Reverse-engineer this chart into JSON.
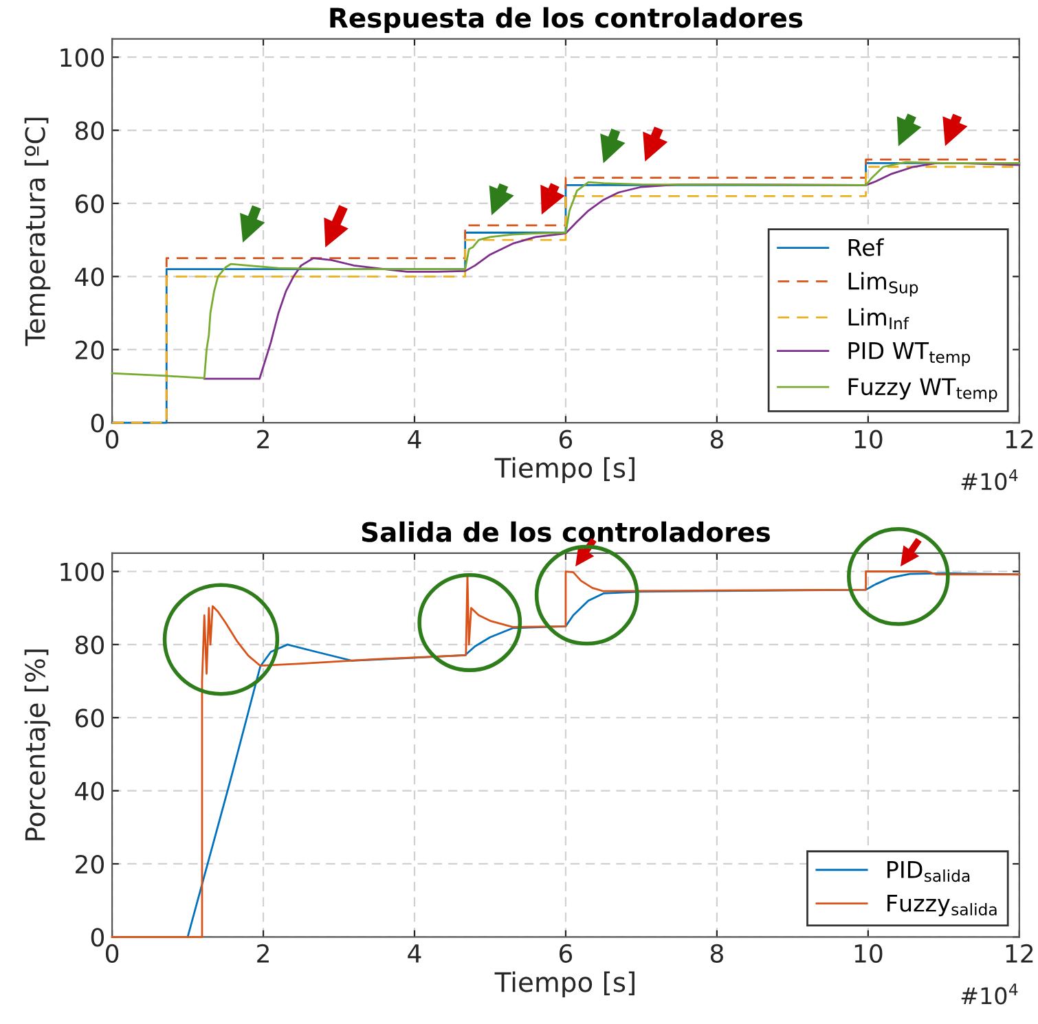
{
  "chart_data": [
    {
      "type": "line",
      "title": "Respuesta de los controladores",
      "xlabel": "Tiempo [s]",
      "ylabel": "Temperatura [ºC]",
      "annotations": [
        "#10$^{4}$"
      ],
      "xlim": [
        0,
        12
      ],
      "xticks": [
        0,
        2,
        4,
        6,
        8,
        10,
        12
      ],
      "ylim": [
        0,
        105
      ],
      "yticks": [
        0,
        20,
        40,
        60,
        80,
        100
      ],
      "grid": true,
      "legend": "bottom right",
      "series": [
        {
          "name": "Ref",
          "color": "#0072bd",
          "line_style": "solid",
          "x": [
            0,
            0.72,
            0.72,
            4.67,
            4.67,
            6.0,
            6.0,
            9.97,
            9.97,
            12
          ],
          "values": [
            0,
            0,
            42,
            42,
            52,
            52,
            65,
            65,
            71,
            71
          ]
        },
        {
          "name": "Lim$_{Sup}$",
          "color": "#d95319",
          "line_style": "dashed",
          "x": [
            0,
            0.72,
            0.72,
            4.67,
            4.67,
            6.0,
            6.0,
            9.97,
            9.97,
            12
          ],
          "values": [
            0,
            0,
            45,
            45,
            54,
            54,
            67,
            67,
            72,
            72
          ]
        },
        {
          "name": "Lim$_{Inf}$",
          "color": "#edb120",
          "line_style": "dashed",
          "x": [
            0,
            0.72,
            0.72,
            4.67,
            4.67,
            6.0,
            6.0,
            9.97,
            9.97,
            12
          ],
          "values": [
            0,
            0,
            40,
            40,
            50,
            50,
            62,
            62,
            70,
            70
          ]
        },
        {
          "name": "PID WT$_{temp}$",
          "color": "#7e2f8e",
          "line_style": "solid",
          "x": [
            1.22,
            1.95,
            2.1,
            2.2,
            2.3,
            2.4,
            2.5,
            2.66,
            2.9,
            3.2,
            3.6,
            3.9,
            4.3,
            4.67,
            4.8,
            5.0,
            5.3,
            5.6,
            6.0,
            6.15,
            6.3,
            6.5,
            6.7,
            7.0,
            7.5,
            8.0,
            9.97,
            10.1,
            10.3,
            10.6,
            10.9,
            11.2,
            12
          ],
          "values": [
            12,
            12,
            22,
            30,
            36,
            40,
            43,
            45,
            44.5,
            43,
            42,
            41.3,
            41.3,
            41.5,
            43,
            46,
            49,
            50.8,
            51.8,
            55,
            58,
            61,
            63,
            64.5,
            65.2,
            65.2,
            65,
            66,
            68,
            70,
            71,
            71,
            70.5
          ]
        },
        {
          "name": "Fuzzy WT$_{temp}$",
          "color": "#77ac30",
          "line_style": "solid",
          "x": [
            0,
            0.72,
            1.22,
            1.25,
            1.28,
            1.3,
            1.35,
            1.4,
            1.5,
            1.57,
            1.8,
            2.2,
            3,
            4.67,
            4.72,
            4.77,
            4.85,
            5.0,
            5.3,
            5.6,
            6.0,
            6.05,
            6.15,
            6.3,
            6.5,
            7,
            9.97,
            10.05,
            10.2,
            10.5,
            11,
            12
          ],
          "values": [
            13.5,
            12.8,
            12.2,
            20,
            24,
            30,
            36,
            40,
            42.5,
            43.4,
            43,
            42.3,
            42,
            42,
            47.5,
            48,
            50,
            50.8,
            51.5,
            51.8,
            52,
            58,
            63.5,
            65.8,
            65.5,
            65.2,
            65,
            67,
            70,
            71.3,
            71,
            71
          ]
        }
      ]
    },
    {
      "type": "line",
      "title": "Salida de los controladores",
      "xlabel": "Tiempo [s]",
      "ylabel": "Porcentaje [%]",
      "annotations": [
        "#10$^{4}$"
      ],
      "xlim": [
        0,
        12
      ],
      "xticks": [
        0,
        2,
        4,
        6,
        8,
        10,
        12
      ],
      "ylim": [
        0,
        105
      ],
      "yticks": [
        0,
        20,
        40,
        60,
        80,
        100
      ],
      "grid": true,
      "legend": "bottom right",
      "series": [
        {
          "name": "PID$_{salida}$",
          "color": "#0072bd",
          "line_style": "solid",
          "x": [
            1.0,
            1.56,
            1.96,
            2.1,
            2.32,
            2.7,
            3.17,
            3.9,
            4.67,
            4.8,
            5.0,
            5.3,
            6.0,
            6.1,
            6.3,
            6.5,
            7,
            9.97,
            10.1,
            10.3,
            10.55,
            11,
            12
          ],
          "values": [
            0,
            42.5,
            74,
            78,
            80,
            78,
            75.6,
            76.3,
            77.1,
            79.5,
            82,
            84.5,
            85,
            88,
            92,
            94,
            94.5,
            95,
            96.5,
            98.3,
            99.3,
            99.5,
            99.2
          ]
        },
        {
          "name": "Fuzzy$_{salida}$",
          "color": "#d95319",
          "line_style": "solid",
          "x": [
            0,
            1.19,
            1.19,
            1.22,
            1.25,
            1.28,
            1.3,
            1.33,
            1.4,
            1.5,
            1.65,
            1.8,
            1.96,
            2.5,
            3.5,
            4.68,
            4.7,
            4.72,
            4.75,
            4.85,
            5.0,
            5.3,
            6.0,
            6.0,
            6.1,
            6.2,
            6.35,
            6.5,
            8,
            9.97,
            9.97,
            10.78,
            10.9,
            12
          ],
          "values": [
            0,
            0,
            70,
            88,
            72,
            90,
            80,
            90.5,
            89,
            86,
            81,
            77,
            74.2,
            74.8,
            76,
            77.1,
            99,
            80,
            90,
            88,
            86.5,
            84.8,
            85,
            100,
            99.8,
            97.5,
            95.5,
            94.6,
            94.8,
            95,
            100,
            100,
            99.2,
            99.2
          ]
        }
      ]
    }
  ]
}
